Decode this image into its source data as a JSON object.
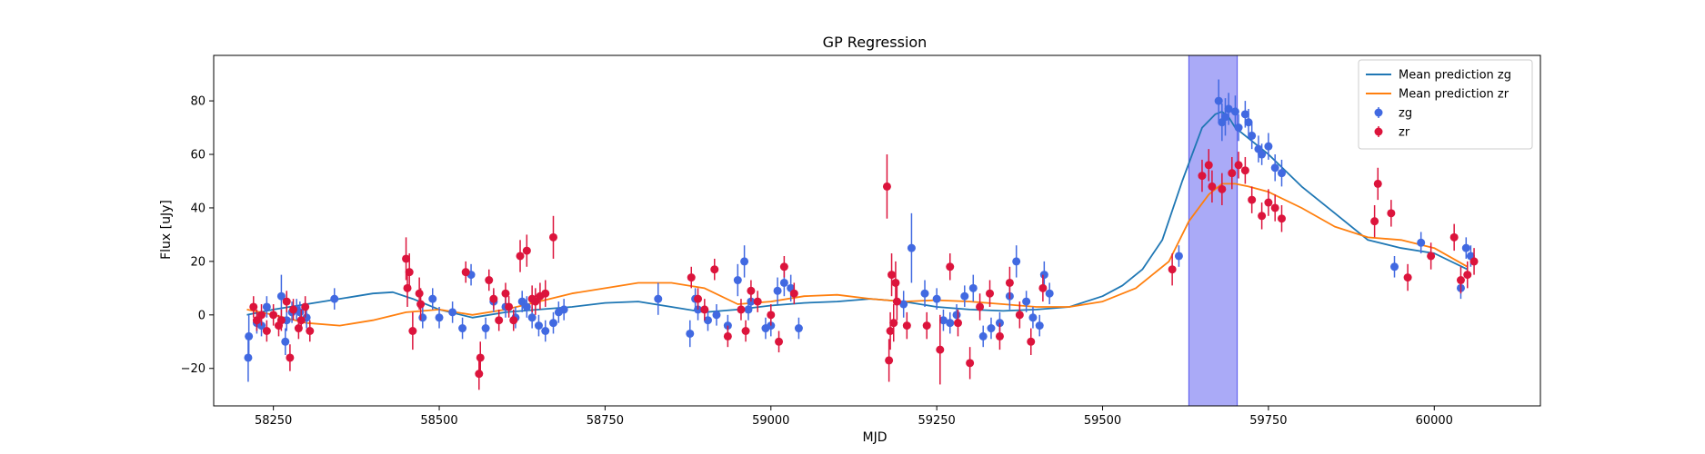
{
  "chart_data": {
    "type": "scatter",
    "title": "GP Regression",
    "xlabel": "MJD",
    "ylabel": "Flux [uJy]",
    "xlim": [
      58160,
      60160
    ],
    "ylim": [
      -34,
      97
    ],
    "xticks": [
      58250,
      58500,
      58750,
      59000,
      59250,
      59500,
      59750,
      60000
    ],
    "yticks": [
      -20,
      0,
      20,
      40,
      60,
      80
    ],
    "highlight_band": {
      "x0": 59630,
      "x1": 59703,
      "color": "#aaaaf7"
    },
    "legend": {
      "placement": "top-right",
      "entries": [
        {
          "label": "Mean prediction zg",
          "kind": "line",
          "color": "#1f77b4"
        },
        {
          "label": "Mean prediction zr",
          "kind": "line",
          "color": "#ff7f0e"
        },
        {
          "label": "zg",
          "kind": "point",
          "color": "#4169e1"
        },
        {
          "label": "zr",
          "kind": "point",
          "color": "#dc143c"
        }
      ]
    },
    "series": [
      {
        "name": "Mean prediction zg",
        "kind": "line",
        "color": "#1f77b4",
        "x": [
          58210,
          58250,
          58300,
          58350,
          58400,
          58430,
          58460,
          58500,
          58550,
          58600,
          58650,
          58700,
          58750,
          58800,
          58850,
          58900,
          58950,
          59000,
          59050,
          59100,
          59150,
          59200,
          59250,
          59300,
          59350,
          59400,
          59450,
          59500,
          59530,
          59560,
          59590,
          59620,
          59650,
          59670,
          59680,
          59690,
          59700,
          59720,
          59750,
          59800,
          59850,
          59900,
          59950,
          60000,
          60050
        ],
        "y": [
          0,
          2,
          4,
          6,
          8,
          8.5,
          6,
          2,
          -1,
          1,
          2,
          3,
          4.5,
          5,
          3,
          1,
          2,
          3.5,
          4.5,
          5,
          6,
          5,
          3,
          2,
          1.5,
          2,
          3,
          7,
          11,
          17,
          28,
          50,
          70,
          75,
          76,
          74,
          70,
          66,
          60,
          48,
          38,
          28,
          25,
          23,
          17
        ]
      },
      {
        "name": "Mean prediction zr",
        "kind": "line",
        "color": "#ff7f0e",
        "x": [
          58210,
          58250,
          58300,
          58350,
          58400,
          58450,
          58500,
          58550,
          58600,
          58650,
          58700,
          58750,
          58800,
          58850,
          58900,
          58950,
          59000,
          59050,
          59100,
          59150,
          59200,
          59250,
          59300,
          59350,
          59400,
          59450,
          59500,
          59550,
          59600,
          59630,
          59660,
          59680,
          59700,
          59720,
          59750,
          59800,
          59850,
          59900,
          59950,
          60000,
          60050
        ],
        "y": [
          2,
          0,
          -3,
          -4,
          -2,
          1,
          2,
          0,
          2,
          5,
          8,
          10,
          12,
          12,
          10,
          4,
          5,
          7,
          7.5,
          6,
          5,
          5.5,
          5,
          4,
          3,
          3,
          5,
          10,
          20,
          35,
          45,
          49,
          49,
          48,
          46,
          40,
          33,
          29,
          28,
          25,
          18
        ]
      },
      {
        "name": "zg",
        "kind": "errorbar-points",
        "color": "#4169e1",
        "x": [
          58212,
          58213,
          58225,
          58232,
          58240,
          58262,
          58268,
          58270,
          58278,
          58285,
          58290,
          58300,
          58342,
          58475,
          58490,
          58500,
          58520,
          58535,
          58548,
          58570,
          58582,
          58600,
          58615,
          58625,
          58632,
          58640,
          58650,
          58660,
          58672,
          58680,
          58688,
          58830,
          58878,
          58886,
          58890,
          58905,
          58918,
          58935,
          58950,
          58960,
          58966,
          58970,
          58992,
          59000,
          59010,
          59020,
          59030,
          59042,
          59200,
          59212,
          59232,
          59250,
          59260,
          59270,
          59280,
          59292,
          59305,
          59320,
          59332,
          59345,
          59360,
          59370,
          59385,
          59395,
          59405,
          59412,
          59420,
          59615,
          59675,
          59680,
          59685,
          59690,
          59700,
          59705,
          59715,
          59720,
          59725,
          59735,
          59740,
          59750,
          59760,
          59770,
          59940,
          59980,
          60040,
          60048,
          60055
        ],
        "y": [
          -16,
          -8,
          -3,
          -4,
          3,
          7,
          -10,
          -2,
          1,
          2,
          1,
          -1,
          6,
          -1,
          6,
          -1,
          1,
          -5,
          15,
          -5,
          5,
          3,
          -1,
          5,
          3,
          -1,
          -4,
          -6,
          -3,
          1,
          2,
          6,
          -7,
          6,
          2,
          -2,
          0,
          -4,
          13,
          20,
          2,
          5,
          -5,
          -4,
          9,
          12,
          10,
          -5,
          4,
          25,
          8,
          6,
          -2,
          -3,
          0,
          7,
          10,
          -8,
          -5,
          -3,
          7,
          20,
          5,
          -1,
          -4,
          15,
          8,
          22,
          80,
          72,
          74,
          77,
          76,
          70,
          75,
          72,
          67,
          62,
          60,
          63,
          55,
          53,
          18,
          27,
          10,
          25,
          22
        ],
        "err": [
          9,
          8,
          4,
          4,
          4,
          8,
          5,
          4,
          4,
          4,
          4,
          4,
          4,
          4,
          4,
          4,
          4,
          4,
          4,
          4,
          4,
          4,
          4,
          4,
          4,
          4,
          4,
          4,
          4,
          4,
          4,
          6,
          5,
          4,
          4,
          4,
          4,
          4,
          6,
          6,
          4,
          4,
          4,
          4,
          5,
          5,
          5,
          4,
          5,
          13,
          5,
          4,
          4,
          4,
          4,
          4,
          5,
          4,
          4,
          4,
          5,
          6,
          4,
          4,
          4,
          5,
          4,
          4,
          8,
          7,
          7,
          6,
          6,
          5,
          5,
          5,
          5,
          5,
          4,
          5,
          5,
          5,
          4,
          4,
          4,
          4,
          4
        ]
      },
      {
        "name": "zr",
        "kind": "errorbar-points",
        "color": "#dc143c",
        "x": [
          58220,
          58225,
          58232,
          58240,
          58250,
          58258,
          58262,
          58270,
          58275,
          58280,
          58288,
          58292,
          58298,
          58305,
          58450,
          58452,
          58455,
          58460,
          58470,
          58472,
          58540,
          58560,
          58562,
          58575,
          58582,
          58590,
          58600,
          58605,
          58612,
          58622,
          58632,
          58640,
          58645,
          58652,
          58660,
          58672,
          58880,
          58890,
          58900,
          58915,
          58935,
          58955,
          58962,
          58970,
          58980,
          59000,
          59012,
          59020,
          59035,
          59175,
          59178,
          59180,
          59182,
          59185,
          59188,
          59190,
          59205,
          59235,
          59255,
          59270,
          59282,
          59300,
          59315,
          59330,
          59345,
          59360,
          59375,
          59392,
          59410,
          59605,
          59650,
          59660,
          59665,
          59680,
          59695,
          59705,
          59715,
          59725,
          59740,
          59750,
          59760,
          59770,
          59910,
          59915,
          59935,
          59960,
          59995,
          60030,
          60040,
          60050,
          60060
        ],
        "y": [
          3,
          -2,
          0,
          -6,
          0,
          -4,
          -2,
          5,
          -16,
          2,
          -5,
          -2,
          3,
          -6,
          21,
          10,
          16,
          -6,
          8,
          4,
          16,
          -22,
          -16,
          13,
          6,
          -2,
          8,
          3,
          -2,
          22,
          24,
          6,
          5,
          7,
          8,
          29,
          14,
          6,
          2,
          17,
          -8,
          2,
          -6,
          9,
          5,
          0,
          -10,
          18,
          8,
          48,
          -17,
          -6,
          15,
          -3,
          12,
          5,
          -4,
          -4,
          -13,
          18,
          -3,
          -18,
          3,
          8,
          -8,
          12,
          0,
          -10,
          10,
          17,
          52,
          56,
          48,
          47,
          53,
          56,
          54,
          43,
          37,
          42,
          40,
          36,
          35,
          49,
          38,
          14,
          22,
          29,
          13,
          15,
          20
        ],
        "err": [
          4,
          4,
          4,
          4,
          4,
          4,
          4,
          4,
          5,
          4,
          4,
          4,
          4,
          4,
          8,
          7,
          7,
          7,
          6,
          6,
          4,
          6,
          6,
          4,
          4,
          4,
          4,
          4,
          4,
          6,
          6,
          5,
          5,
          5,
          5,
          8,
          4,
          4,
          4,
          4,
          4,
          4,
          4,
          4,
          4,
          4,
          4,
          4,
          4,
          12,
          8,
          7,
          8,
          7,
          8,
          7,
          5,
          5,
          13,
          5,
          5,
          6,
          5,
          5,
          5,
          6,
          5,
          5,
          5,
          6,
          6,
          6,
          6,
          6,
          6,
          5,
          5,
          5,
          5,
          5,
          5,
          5,
          6,
          6,
          5,
          5,
          5,
          5,
          5,
          5,
          5
        ]
      }
    ]
  }
}
